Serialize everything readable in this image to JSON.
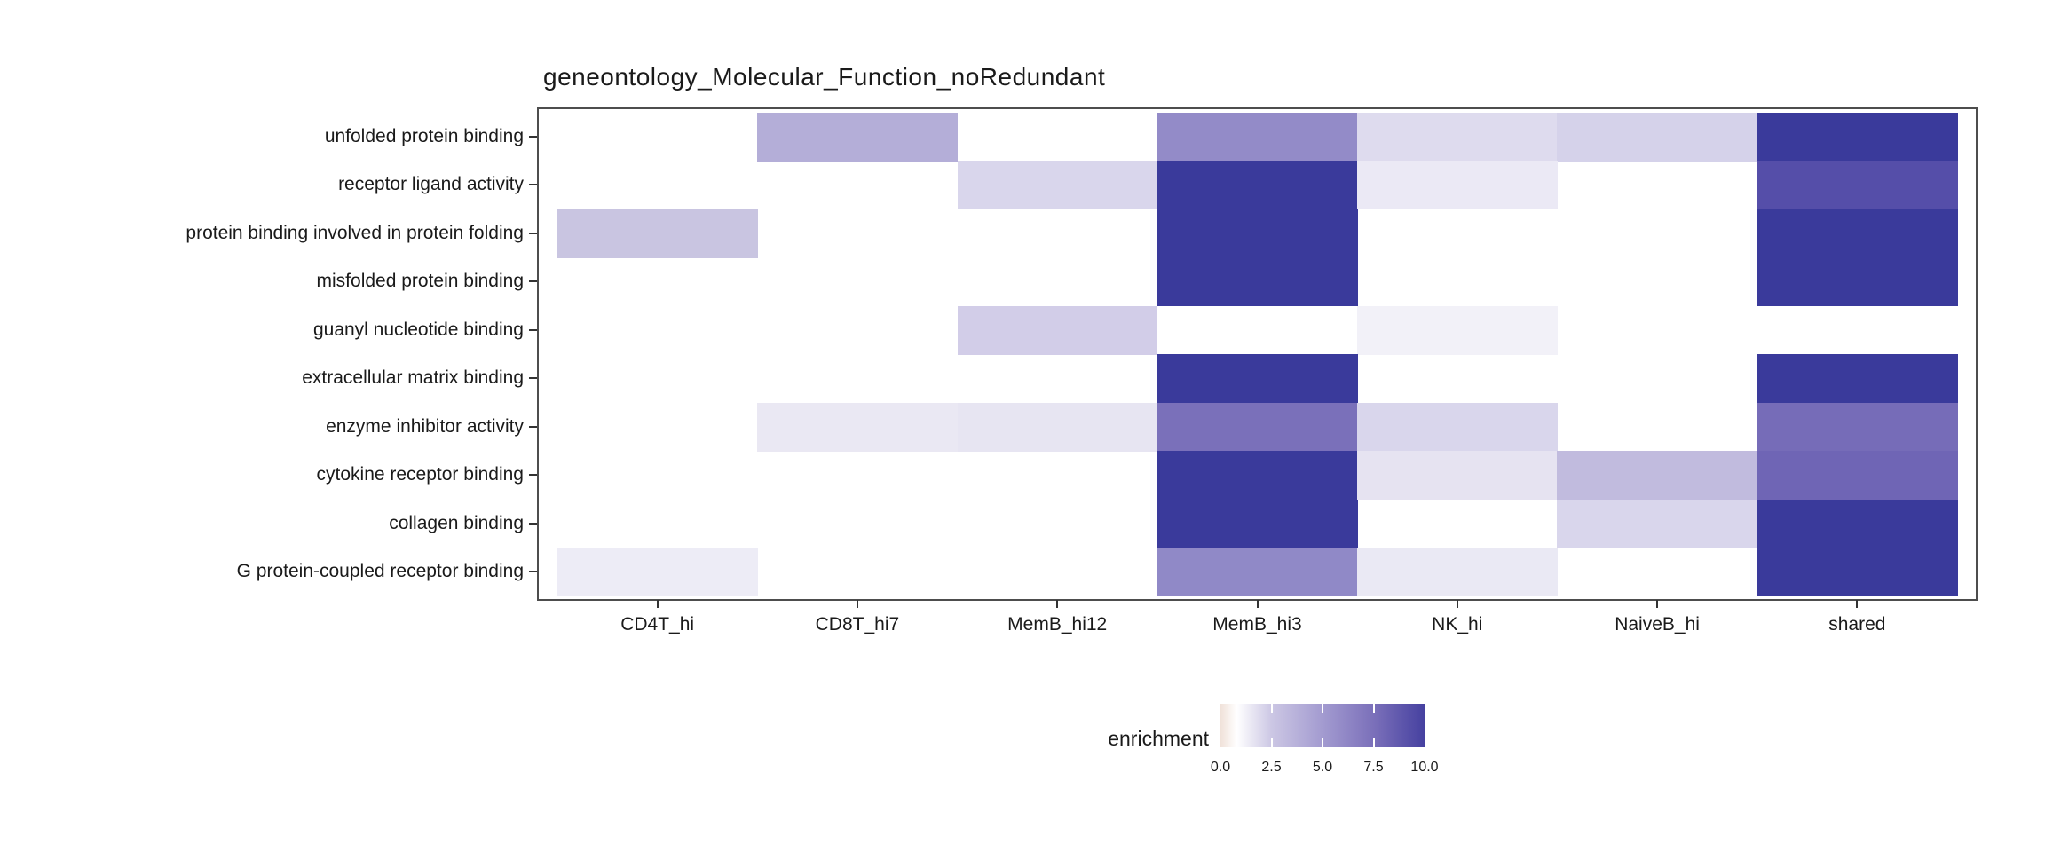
{
  "title": "geneontology_Molecular_Function_noRedundant",
  "legend": {
    "label": "enrichment",
    "tick_labels": [
      "0.0",
      "2.5",
      "5.0",
      "7.5",
      "10.0"
    ]
  },
  "colors": {
    "background": "#ffffff",
    "panel_border": "#4d4d4d",
    "axis_tick": "#333333",
    "text": "#1a1a1a",
    "heat_max": "#3a3a9b",
    "heat_low_tint": "#f0e1d9"
  },
  "chart_data": {
    "type": "heatmap",
    "title": "geneontology_Molecular_Function_noRedundant",
    "legend_label": "enrichment",
    "columns": [
      "CD4T_hi",
      "CD8T_hi7",
      "MemB_hi12",
      "MemB_hi3",
      "NK_hi",
      "NaiveB_hi",
      "shared"
    ],
    "rows": [
      "unfolded protein binding",
      "receptor ligand activity",
      "protein binding involved in protein folding",
      "misfolded protein binding",
      "guanyl nucleotide binding",
      "extracellular matrix binding",
      "enzyme inhibitor activity",
      "cytokine receptor binding",
      "collagen binding",
      "G protein-coupled receptor binding"
    ],
    "values": [
      [
        null,
        4.8,
        null,
        6.3,
        2.8,
        3.2,
        10.0
      ],
      [
        null,
        null,
        3.0,
        10.0,
        2.0,
        null,
        9.0
      ],
      [
        3.8,
        null,
        null,
        10.0,
        null,
        null,
        10.0
      ],
      [
        null,
        null,
        null,
        10.0,
        null,
        null,
        10.0
      ],
      [
        null,
        null,
        3.4,
        null,
        1.4,
        null,
        null
      ],
      [
        null,
        null,
        null,
        10.0,
        null,
        null,
        10.0
      ],
      [
        null,
        2.1,
        2.2,
        7.5,
        3.0,
        null,
        7.6
      ],
      [
        null,
        null,
        null,
        10.0,
        2.3,
        4.2,
        7.8
      ],
      [
        null,
        null,
        null,
        10.0,
        null,
        3.0,
        10.0
      ],
      [
        1.8,
        null,
        null,
        6.4,
        2.0,
        null,
        10.0
      ]
    ],
    "cell_colors": [
      [
        null,
        "#b4aed8",
        null,
        "#938bc8",
        "#dedbee",
        "#d5d2ea",
        "#3a3a9b"
      ],
      [
        null,
        null,
        "#d9d6ec",
        "#3a3a9b",
        "#ebe9f5",
        null,
        "#554ea9"
      ],
      [
        "#c9c5e1",
        null,
        null,
        "#3a3a9b",
        null,
        null,
        "#3a3a9b"
      ],
      [
        null,
        null,
        null,
        "#3a3a9b",
        null,
        null,
        "#3a3a9b"
      ],
      [
        null,
        null,
        "#d2cde8",
        null,
        "#f2f1f8",
        null,
        null
      ],
      [
        null,
        null,
        null,
        "#3a3a9b",
        null,
        null,
        "#3a3a9b"
      ],
      [
        null,
        "#eae8f3",
        "#e7e5f2",
        "#7a70ba",
        "#d9d6ec",
        null,
        "#766cb8"
      ],
      [
        null,
        null,
        null,
        "#3a3a9b",
        "#e6e3f1",
        "#c1bbde",
        "#6f65b5"
      ],
      [
        null,
        null,
        null,
        "#3a3a9b",
        null,
        "#d9d6ec",
        "#3a3a9b"
      ],
      [
        "#edecf6",
        null,
        null,
        "#9089c7",
        "#eae9f4",
        null,
        "#3a3a9b"
      ]
    ],
    "na_color": "#ffffff",
    "colorbar": {
      "range": [
        0,
        10
      ],
      "ticks": [
        0.0,
        2.5,
        5.0,
        7.5,
        10.0
      ],
      "inner_tick_values": [
        2.5,
        5.0,
        7.5
      ],
      "gradient_stops": [
        {
          "pos": 0.0,
          "color": "#f0e1d9"
        },
        {
          "pos": 0.08,
          "color": "#ffffff"
        },
        {
          "pos": 0.25,
          "color": "#ccc7e4"
        },
        {
          "pos": 0.5,
          "color": "#a39bd0"
        },
        {
          "pos": 0.75,
          "color": "#7b70ba"
        },
        {
          "pos": 1.0,
          "color": "#4641a0"
        }
      ]
    },
    "legend_position": "bottom",
    "grid": false
  }
}
